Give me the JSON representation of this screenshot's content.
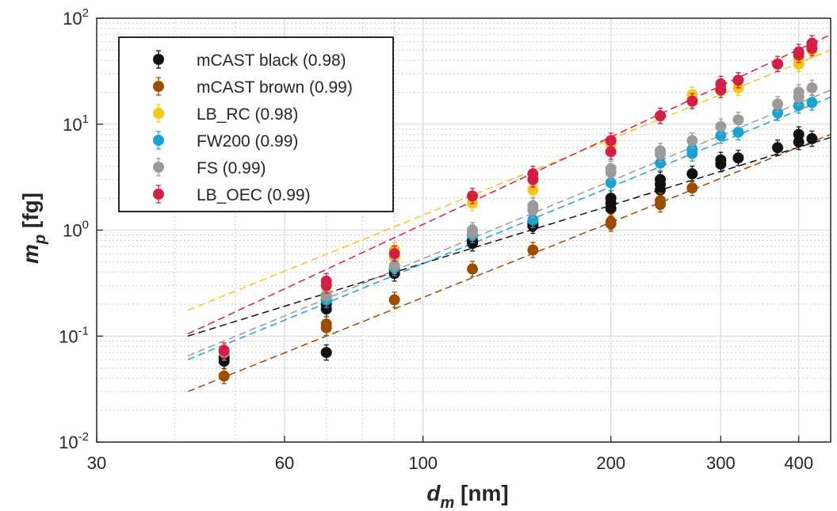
{
  "chart_data": {
    "type": "scatter",
    "xscale": "log",
    "yscale": "log",
    "xlim": [
      30,
      450
    ],
    "ylim": [
      0.01,
      100
    ],
    "x_ticks": [
      {
        "value": 30,
        "label": "30"
      },
      {
        "value": 60,
        "label": "60"
      },
      {
        "value": 100,
        "label": "100"
      },
      {
        "value": 200,
        "label": "200"
      },
      {
        "value": 300,
        "label": "300"
      },
      {
        "value": 400,
        "label": "400"
      }
    ],
    "y_ticks": [
      {
        "value": 0.01,
        "base": "10",
        "exp": "-2"
      },
      {
        "value": 0.1,
        "base": "10",
        "exp": "-1"
      },
      {
        "value": 1,
        "base": "10",
        "exp": "0"
      },
      {
        "value": 10,
        "base": "10",
        "exp": "1"
      },
      {
        "value": 100,
        "base": "10",
        "exp": "2"
      }
    ],
    "xlabel": {
      "symbol": "d",
      "sub": "m",
      "unit": " [nm]"
    },
    "ylabel": {
      "symbol": "m",
      "sub": "p",
      "unit": " [fg]"
    },
    "grid": true,
    "legend_position": "upper-left",
    "series": [
      {
        "name": "mCAST black (0.98)",
        "color": "#111111",
        "points": [
          [
            48,
            0.058
          ],
          [
            48,
            0.063
          ],
          [
            70,
            0.07
          ],
          [
            70,
            0.18
          ],
          [
            70,
            0.2
          ],
          [
            70,
            0.22
          ],
          [
            90,
            0.39
          ],
          [
            90,
            0.42
          ],
          [
            120,
            0.75
          ],
          [
            120,
            0.8
          ],
          [
            150,
            1.1
          ],
          [
            150,
            1.15
          ],
          [
            200,
            1.6
          ],
          [
            200,
            1.8
          ],
          [
            200,
            2.0
          ],
          [
            240,
            2.4
          ],
          [
            240,
            2.7
          ],
          [
            240,
            3.0
          ],
          [
            270,
            3.4
          ],
          [
            300,
            4.2
          ],
          [
            300,
            4.6
          ],
          [
            320,
            4.8
          ],
          [
            370,
            6.0
          ],
          [
            400,
            6.8
          ],
          [
            400,
            8.0
          ],
          [
            420,
            7.3
          ]
        ],
        "fit": [
          [
            42,
            0.1
          ],
          [
            450,
            7.5
          ]
        ]
      },
      {
        "name": "mCAST brown (0.99)",
        "color": "#9c4d00",
        "points": [
          [
            48,
            0.042
          ],
          [
            70,
            0.12
          ],
          [
            70,
            0.13
          ],
          [
            90,
            0.22
          ],
          [
            120,
            0.43
          ],
          [
            150,
            0.65
          ],
          [
            200,
            1.15
          ],
          [
            200,
            1.2
          ],
          [
            240,
            1.75
          ],
          [
            240,
            1.9
          ],
          [
            270,
            2.5
          ]
        ],
        "fit": [
          [
            42,
            0.03
          ],
          [
            450,
            8.0
          ]
        ]
      },
      {
        "name": "LB_RC (0.98)",
        "color": "#f5c518",
        "points": [
          [
            70,
            0.25
          ],
          [
            90,
            0.55
          ],
          [
            90,
            0.65
          ],
          [
            120,
            1.8
          ],
          [
            150,
            2.4
          ],
          [
            200,
            6.5
          ],
          [
            240,
            12
          ],
          [
            270,
            17
          ],
          [
            270,
            19
          ],
          [
            300,
            22
          ],
          [
            320,
            22
          ],
          [
            370,
            37
          ],
          [
            400,
            37
          ],
          [
            400,
            40
          ],
          [
            420,
            50
          ]
        ],
        "fit": [
          [
            42,
            0.175
          ],
          [
            450,
            50
          ]
        ]
      },
      {
        "name": "FW200 (0.99)",
        "color": "#1aa3d1",
        "points": [
          [
            70,
            0.22
          ],
          [
            90,
            0.44
          ],
          [
            120,
            0.9
          ],
          [
            150,
            1.25
          ],
          [
            200,
            2.8
          ],
          [
            240,
            4.3
          ],
          [
            270,
            5.3
          ],
          [
            270,
            5.8
          ],
          [
            300,
            7.8
          ],
          [
            320,
            8.4
          ],
          [
            370,
            12.8
          ],
          [
            400,
            15
          ],
          [
            420,
            16
          ]
        ],
        "fit": [
          [
            42,
            0.06
          ],
          [
            450,
            18
          ]
        ]
      },
      {
        "name": "FS (0.99)",
        "color": "#9b9b9b",
        "points": [
          [
            48,
            0.07
          ],
          [
            70,
            0.24
          ],
          [
            90,
            0.46
          ],
          [
            120,
            0.95
          ],
          [
            120,
            1.0
          ],
          [
            150,
            1.55
          ],
          [
            150,
            1.7
          ],
          [
            200,
            3.5
          ],
          [
            200,
            3.8
          ],
          [
            240,
            5.2
          ],
          [
            240,
            5.6
          ],
          [
            270,
            7.0
          ],
          [
            300,
            9.5
          ],
          [
            320,
            11
          ],
          [
            370,
            15.5
          ],
          [
            400,
            18
          ],
          [
            400,
            20
          ],
          [
            420,
            22
          ]
        ],
        "fit": [
          [
            42,
            0.065
          ],
          [
            450,
            21
          ]
        ]
      },
      {
        "name": "LB_OEC (0.99)",
        "color": "#d41f45",
        "points": [
          [
            48,
            0.073
          ],
          [
            70,
            0.3
          ],
          [
            70,
            0.33
          ],
          [
            90,
            0.6
          ],
          [
            120,
            2.1
          ],
          [
            150,
            3.0
          ],
          [
            150,
            3.4
          ],
          [
            200,
            5.5
          ],
          [
            200,
            7.0
          ],
          [
            240,
            12
          ],
          [
            270,
            16.5
          ],
          [
            300,
            21
          ],
          [
            300,
            24
          ],
          [
            320,
            26
          ],
          [
            370,
            37
          ],
          [
            400,
            45
          ],
          [
            400,
            48
          ],
          [
            420,
            52
          ],
          [
            420,
            58
          ]
        ],
        "fit": [
          [
            42,
            0.105
          ],
          [
            450,
            70
          ]
        ]
      }
    ]
  }
}
